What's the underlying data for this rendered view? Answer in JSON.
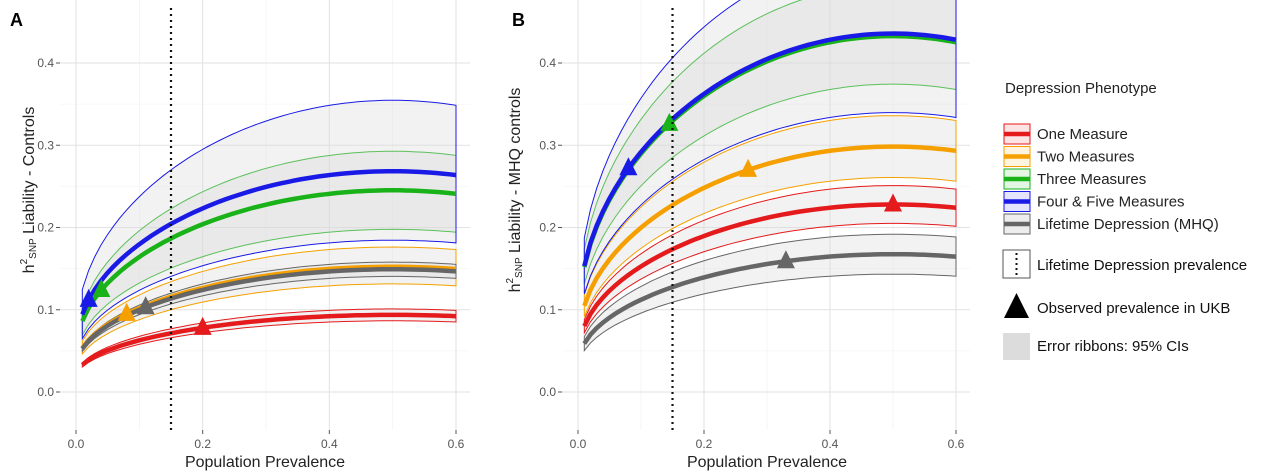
{
  "figure": {
    "legend_title": "Depression Phenotype",
    "extra_legend": {
      "dotted": "Lifetime Depression prevalence",
      "triangle": "Observed prevalence in UKB",
      "ribbon": "Error ribbons: 95% CIs"
    },
    "phenotype_colors": {
      "one": "#e41a1c",
      "two": "#f5a000",
      "three": "#19b219",
      "four_five": "#1a1ae6",
      "mhq": "#666666"
    }
  },
  "chart_data": [
    {
      "type": "line",
      "panel": "A",
      "xlabel": "Population Prevalence",
      "ylabel_prefix": "h",
      "ylabel_sup": "2",
      "ylabel_sub": "SNP",
      "ylabel_rest": " Liability - Controls",
      "xlim": [
        0,
        0.6
      ],
      "ylim": [
        0,
        0.45
      ],
      "x_ticks": [
        "0.0",
        "0.2",
        "0.4",
        "0.6"
      ],
      "y_ticks": [
        "0.0",
        "0.1",
        "0.2",
        "0.3",
        "0.4"
      ],
      "reference_line_x": 0.15,
      "x_start": 0.01,
      "x_end": 0.6,
      "series": [
        {
          "name": "One Measure",
          "key": "one",
          "observed_prevalence": 0.2,
          "h2_at_observed": 0.078,
          "ci_low_at_observed": 0.072,
          "ci_high_at_observed": 0.084
        },
        {
          "name": "Two Measures",
          "key": "two",
          "observed_prevalence": 0.08,
          "h2_at_observed": 0.095,
          "ci_low_at_observed": 0.082,
          "ci_high_at_observed": 0.11
        },
        {
          "name": "Three Measures",
          "key": "three",
          "observed_prevalence": 0.04,
          "h2_at_observed": 0.124,
          "ci_low_at_observed": 0.1,
          "ci_high_at_observed": 0.148
        },
        {
          "name": "Four & Five Measures",
          "key": "four_five",
          "observed_prevalence": 0.02,
          "h2_at_observed": 0.112,
          "ci_low_at_observed": 0.077,
          "ci_high_at_observed": 0.148
        },
        {
          "name": "Lifetime Depression (MHQ)",
          "key": "mhq",
          "observed_prevalence": 0.11,
          "h2_at_observed": 0.103,
          "ci_low_at_observed": 0.097,
          "ci_high_at_observed": 0.109
        }
      ]
    },
    {
      "type": "line",
      "panel": "B",
      "xlabel": "Population Prevalence",
      "ylabel_prefix": "h",
      "ylabel_sup": "2",
      "ylabel_sub": "SNP",
      "ylabel_rest": " Liability - MHQ controls",
      "xlim": [
        0,
        0.6
      ],
      "ylim": [
        0,
        0.45
      ],
      "x_ticks": [
        "0.0",
        "0.2",
        "0.4",
        "0.6"
      ],
      "y_ticks": [
        "0.0",
        "0.1",
        "0.2",
        "0.3",
        "0.4"
      ],
      "reference_line_x": 0.15,
      "x_start": 0.01,
      "x_end": 0.6,
      "series": [
        {
          "name": "One Measure",
          "key": "one",
          "observed_prevalence": 0.5,
          "h2_at_observed": 0.228,
          "ci_low_at_observed": 0.205,
          "ci_high_at_observed": 0.251
        },
        {
          "name": "Two Measures",
          "key": "two",
          "observed_prevalence": 0.27,
          "h2_at_observed": 0.27,
          "ci_low_at_observed": 0.236,
          "ci_high_at_observed": 0.304
        },
        {
          "name": "Three Measures",
          "key": "three",
          "observed_prevalence": 0.145,
          "h2_at_observed": 0.326,
          "ci_low_at_observed": 0.282,
          "ci_high_at_observed": 0.373
        },
        {
          "name": "Four & Five Measures",
          "key": "four_five",
          "observed_prevalence": 0.08,
          "h2_at_observed": 0.272,
          "ci_low_at_observed": 0.212,
          "ci_high_at_observed": 0.333
        },
        {
          "name": "Lifetime Depression (MHQ)",
          "key": "mhq",
          "observed_prevalence": 0.33,
          "h2_at_observed": 0.159,
          "ci_low_at_observed": 0.136,
          "ci_high_at_observed": 0.182
        }
      ]
    }
  ]
}
